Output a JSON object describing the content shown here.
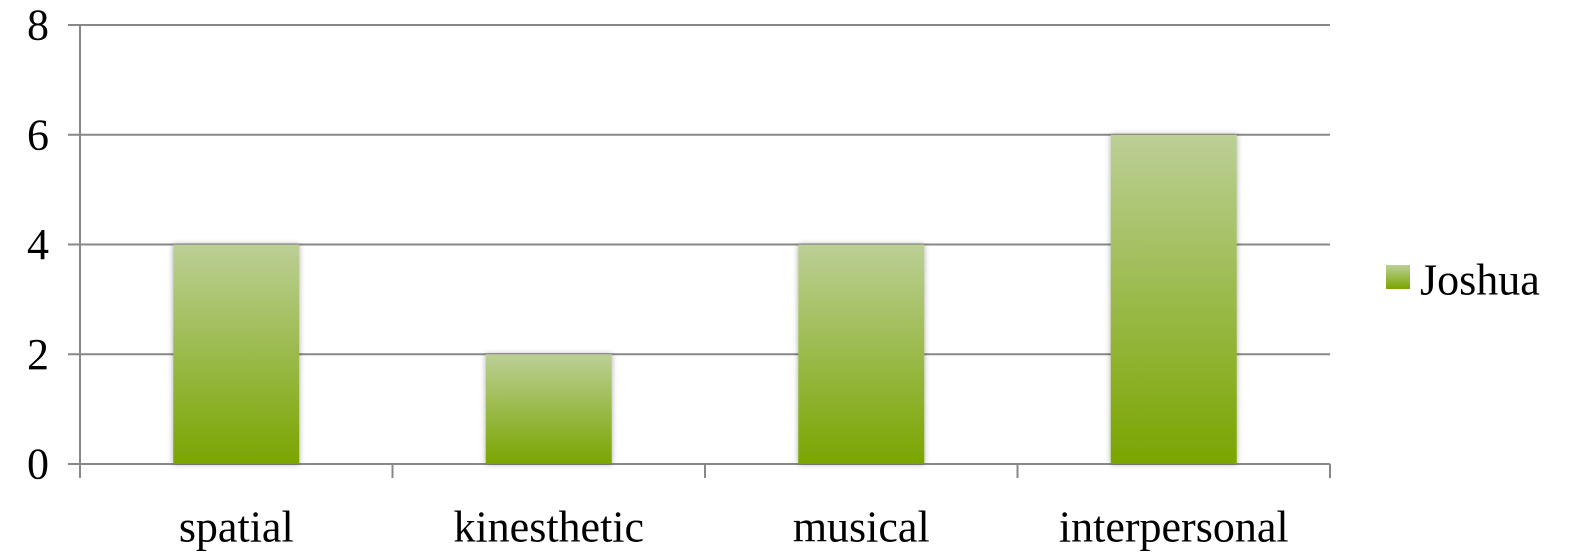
{
  "chart_data": {
    "type": "bar",
    "categories": [
      "spatial",
      "kinesthetic",
      "musical",
      "interpersonal"
    ],
    "series": [
      {
        "name": "Joshua",
        "values": [
          4,
          2,
          4,
          6
        ]
      }
    ],
    "title": "",
    "xlabel": "",
    "ylabel": "",
    "ylim": [
      0,
      8
    ],
    "yticks": [
      "0",
      "2",
      "4",
      "6",
      "8"
    ],
    "grid": true,
    "legend_position": "right",
    "colors": {
      "bar_top": "#bccf96",
      "bar_bottom": "#7aa500",
      "grid": "#888888",
      "axis": "#888888"
    }
  }
}
